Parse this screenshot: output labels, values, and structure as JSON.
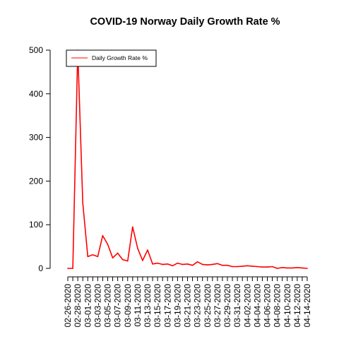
{
  "chart_data": {
    "type": "line",
    "title": "COVID-19 Norway Daily Growth Rate %",
    "xlabel": "",
    "ylabel": "",
    "ylim": [
      0,
      500
    ],
    "y_ticks": [
      0,
      100,
      200,
      300,
      400,
      500
    ],
    "grid": false,
    "legend_position": "top-left",
    "x_tick_labels": [
      "02-26-2020",
      "02-28-2020",
      "03-01-2020",
      "03-03-2020",
      "03-05-2020",
      "03-07-2020",
      "03-09-2020",
      "03-11-2020",
      "03-13-2020",
      "03-15-2020",
      "03-17-2020",
      "03-19-2020",
      "03-21-2020",
      "03-23-2020",
      "03-25-2020",
      "03-27-2020",
      "03-29-2020",
      "03-31-2020",
      "04-02-2020",
      "04-04-2020",
      "04-06-2020",
      "04-08-2020",
      "04-10-2020",
      "04-12-2020",
      "04-14-2020"
    ],
    "x": [
      "02-26-2020",
      "02-27-2020",
      "02-28-2020",
      "02-29-2020",
      "03-01-2020",
      "03-02-2020",
      "03-03-2020",
      "03-04-2020",
      "03-05-2020",
      "03-06-2020",
      "03-07-2020",
      "03-08-2020",
      "03-09-2020",
      "03-10-2020",
      "03-11-2020",
      "03-12-2020",
      "03-13-2020",
      "03-14-2020",
      "03-15-2020",
      "03-16-2020",
      "03-17-2020",
      "03-18-2020",
      "03-19-2020",
      "03-20-2020",
      "03-21-2020",
      "03-22-2020",
      "03-23-2020",
      "03-24-2020",
      "03-25-2020",
      "03-26-2020",
      "03-27-2020",
      "03-28-2020",
      "03-29-2020",
      "03-30-2020",
      "03-31-2020",
      "04-01-2020",
      "04-02-2020",
      "04-03-2020",
      "04-04-2020",
      "04-05-2020",
      "04-06-2020",
      "04-07-2020",
      "04-08-2020",
      "04-09-2020",
      "04-10-2020",
      "04-11-2020",
      "04-12-2020",
      "04-13-2020",
      "04-14-2020"
    ],
    "series": [
      {
        "name": "Daily Growth Rate %",
        "color": "#ff0000",
        "values": [
          0,
          0,
          500,
          150,
          27,
          31,
          27,
          75,
          55,
          24,
          35,
          20,
          17,
          95,
          46,
          18,
          42,
          10,
          12,
          9,
          10,
          6,
          12,
          9,
          10,
          7,
          15,
          9,
          8,
          9,
          11,
          7,
          7,
          4,
          4,
          5,
          6,
          5,
          4,
          3,
          3,
          4,
          0,
          2,
          1,
          1,
          2,
          1,
          0
        ]
      }
    ]
  }
}
